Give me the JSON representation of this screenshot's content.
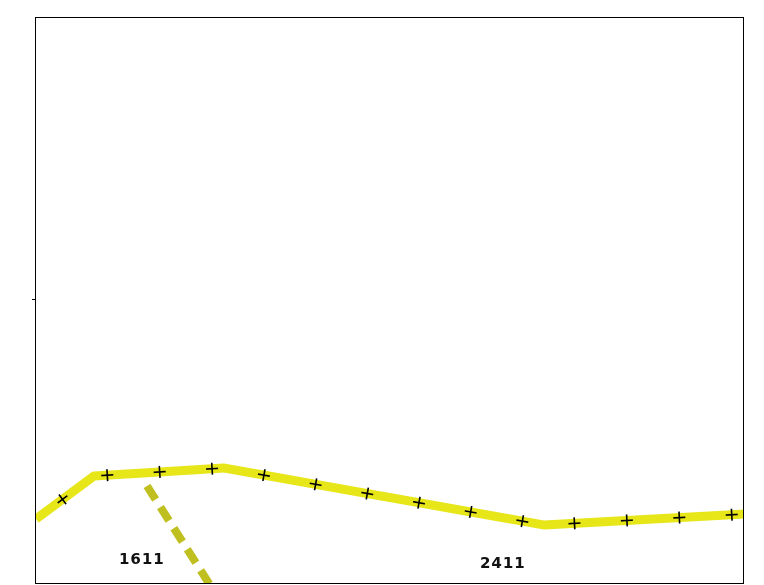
{
  "map": {
    "background_color": "#ffffff",
    "frame_color": "#000000",
    "railway": {
      "style": "rail-with-cross-ties",
      "casing_color": "#e6e619",
      "tie_color": "#000000"
    },
    "secondary_track": {
      "style": "dashed",
      "color": "#bfbf1f"
    },
    "labels": [
      {
        "text": "1611"
      },
      {
        "text": "2411"
      }
    ]
  }
}
